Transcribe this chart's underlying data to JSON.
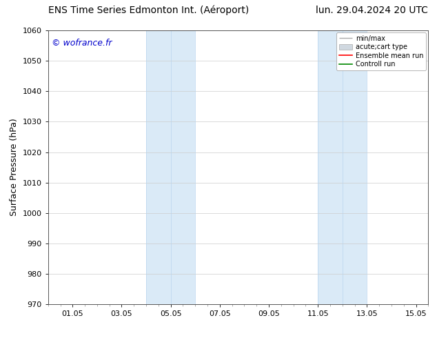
{
  "title_left": "ENS Time Series Edmonton Int. (Aéroport)",
  "title_right": "lun. 29.04.2024 20 UTC",
  "ylabel": "Surface Pressure (hPa)",
  "ylim": [
    970,
    1060
  ],
  "yticks": [
    970,
    980,
    990,
    1000,
    1010,
    1020,
    1030,
    1040,
    1050,
    1060
  ],
  "xlim_start": -0.5,
  "xlim_end": 15.0,
  "xtick_positions": [
    0.5,
    2.5,
    4.5,
    6.5,
    8.5,
    10.5,
    12.5,
    14.5
  ],
  "xtick_labels": [
    "01.05",
    "03.05",
    "05.05",
    "07.05",
    "09.05",
    "11.05",
    "13.05",
    "15.05"
  ],
  "shaded_bands": [
    {
      "x_start": 3.5,
      "x_end": 5.5
    },
    {
      "x_start": 10.5,
      "x_end": 12.5
    }
  ],
  "shaded_color": "#daeaf7",
  "shaded_edge_color": "#b8d4ee",
  "background_color": "#ffffff",
  "watermark_text": "© wofrance.fr",
  "watermark_color": "#0000cc",
  "legend_labels": [
    "min/max",
    "acute;cart type",
    "Ensemble mean run",
    "Controll run"
  ],
  "legend_line_color": "#aaaaaa",
  "legend_patch_color": "#d0d8e0",
  "legend_red": "#ff0000",
  "legend_green": "#008800",
  "grid_color": "#cccccc",
  "tick_label_fontsize": 8,
  "title_fontsize": 10,
  "ylabel_fontsize": 9,
  "watermark_fontsize": 9
}
